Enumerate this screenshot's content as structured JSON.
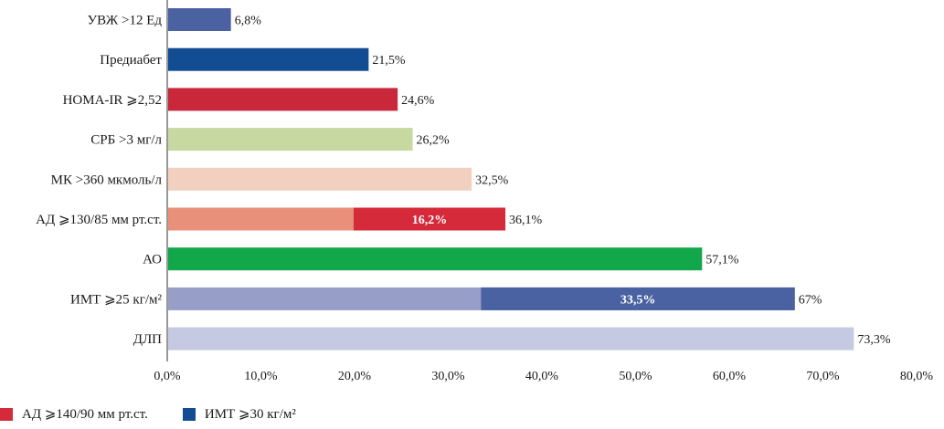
{
  "chart_data": {
    "type": "bar",
    "orientation": "horizontal",
    "xlim": [
      0,
      80
    ],
    "ticks": [
      "0,0%",
      "10,0%",
      "20,0%",
      "30,0%",
      "40,0%",
      "50,0%",
      "60,0%",
      "70,0%",
      "80,0%"
    ],
    "tick_values": [
      0,
      10,
      20,
      30,
      40,
      50,
      60,
      70,
      80
    ],
    "categories": [
      {
        "label": "УВЖ >12 Ед",
        "value": 6.8,
        "value_label": "6,8%",
        "color": "#4A62A2"
      },
      {
        "label": "Предиабет",
        "value": 21.5,
        "value_label": "21,5%",
        "color": "#124C93"
      },
      {
        "label": "HOMA-IR ⩾2,52",
        "value": 24.6,
        "value_label": "24,6%",
        "color": "#C8283A"
      },
      {
        "label": "СРБ >3 мг/л",
        "value": 26.2,
        "value_label": "26,2%",
        "color": "#C7D9A0"
      },
      {
        "label": "МК >360 мкмоль/л",
        "value": 32.5,
        "value_label": "32,5%",
        "color": "#F2D0C0"
      },
      {
        "label": "АД ⩾130/85 мм рт.ст.",
        "value": 36.1,
        "value_label": "36,1%",
        "color": "#E8907A",
        "sub_value": 16.2,
        "sub_label": "16,2%",
        "sub_color": "#D42A3A"
      },
      {
        "label": "АО",
        "value": 57.1,
        "value_label": "57,1%",
        "color": "#12A84A"
      },
      {
        "label": "ИМТ ⩾25 кг/м²",
        "value": 67,
        "value_label": "67%",
        "color": "#979FC8",
        "sub_value": 33.5,
        "sub_label": "33,5%",
        "sub_color": "#4A62A2"
      },
      {
        "label": "ДЛП",
        "value": 73.3,
        "value_label": "73,3%",
        "color": "#C6C9E2"
      }
    ],
    "legend": [
      {
        "label": "АД ⩾140/90 мм рт.ст.",
        "color": "#D42A3A"
      },
      {
        "label": "ИМТ ⩾30 кг/м²",
        "color": "#124C93"
      }
    ],
    "legend_position": "bottom-left",
    "grid": false
  }
}
